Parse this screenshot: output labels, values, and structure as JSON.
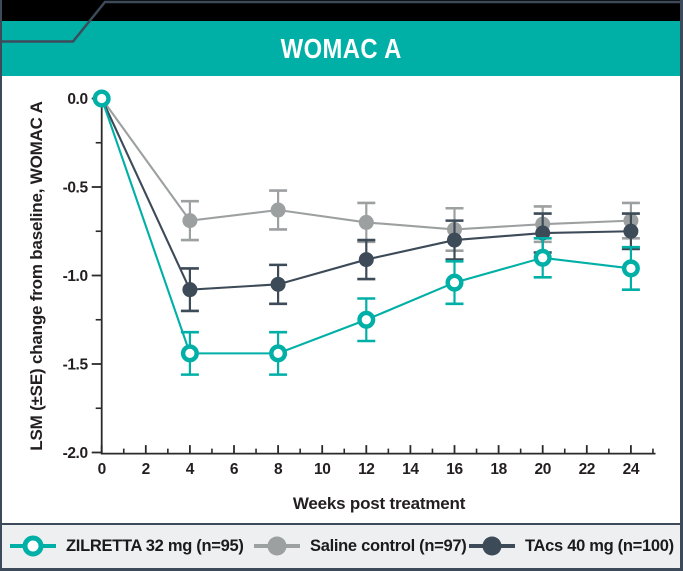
{
  "header": {
    "title": "WOMAC A"
  },
  "colors": {
    "teal": "#00b0a7",
    "gray": "#9da0a1",
    "navy": "#3d4a57",
    "frame": "#3c4a5a",
    "legend_bg": "#edeff1",
    "axis": "#2a2a2b",
    "text": "#231f20",
    "banner_text": "#ffffff",
    "background": "#ffffff",
    "header_band": "#000000"
  },
  "chart_data": {
    "type": "line",
    "title": "WOMAC A",
    "xlabel": "Weeks post treatment",
    "ylabel": "LSM (±SE) change from baseline, WOMAC A",
    "xlim": [
      0,
      25
    ],
    "ylim": [
      -2.0,
      0.0
    ],
    "grid": false,
    "error_bars": true,
    "legend_position": "bottom",
    "x": [
      0,
      4,
      8,
      12,
      16,
      20,
      24
    ],
    "x_axis": {
      "major_ticks": [
        0,
        2,
        4,
        6,
        8,
        10,
        12,
        14,
        16,
        18,
        20,
        22,
        24
      ],
      "minor_ticks": [
        1,
        3,
        5,
        7,
        9,
        11,
        13,
        15,
        17,
        19,
        21,
        23,
        25
      ],
      "tick_labels": [
        "0",
        "2",
        "4",
        "6",
        "8",
        "10",
        "12",
        "14",
        "16",
        "18",
        "20",
        "22",
        "24"
      ]
    },
    "y_axis": {
      "major_ticks": [
        0,
        -0.5,
        -1.0,
        -1.5,
        -2.0
      ],
      "minor_ticks": [
        -0.25,
        -0.75,
        -1.25,
        -1.75
      ],
      "tick_labels": [
        "0.0",
        "-0.5",
        "-1.0",
        "-1.5",
        "-2.0"
      ]
    },
    "series": [
      {
        "name": "ZILRETTA 32 mg (n=95)",
        "color": "teal",
        "marker": "open-circle",
        "values": [
          0.0,
          -1.44,
          -1.44,
          -1.25,
          -1.04,
          -0.9,
          -0.96
        ],
        "se": [
          0,
          0.12,
          0.12,
          0.12,
          0.12,
          0.11,
          0.12
        ]
      },
      {
        "name": "Saline control (n=97)",
        "color": "gray",
        "marker": "filled-circle",
        "values": [
          0.0,
          -0.69,
          -0.63,
          -0.7,
          -0.74,
          -0.71,
          -0.69
        ],
        "se": [
          0,
          0.11,
          0.11,
          0.11,
          0.12,
          0.1,
          0.1
        ]
      },
      {
        "name": "TAcs 40 mg (n=100)",
        "color": "navy",
        "marker": "filled-circle",
        "values": [
          0.0,
          -1.08,
          -1.05,
          -0.91,
          -0.8,
          -0.76,
          -0.75
        ],
        "se": [
          0,
          0.12,
          0.11,
          0.11,
          0.11,
          0.11,
          0.1
        ]
      }
    ]
  },
  "legend": {
    "items": [
      {
        "label": "ZILRETTA 32 mg (n=95)",
        "color": "teal",
        "marker": "open-circle"
      },
      {
        "label": "Saline control (n=97)",
        "color": "gray",
        "marker": "filled-circle"
      },
      {
        "label": "TAcs 40 mg (n=100)",
        "color": "navy",
        "marker": "filled-circle"
      }
    ]
  }
}
